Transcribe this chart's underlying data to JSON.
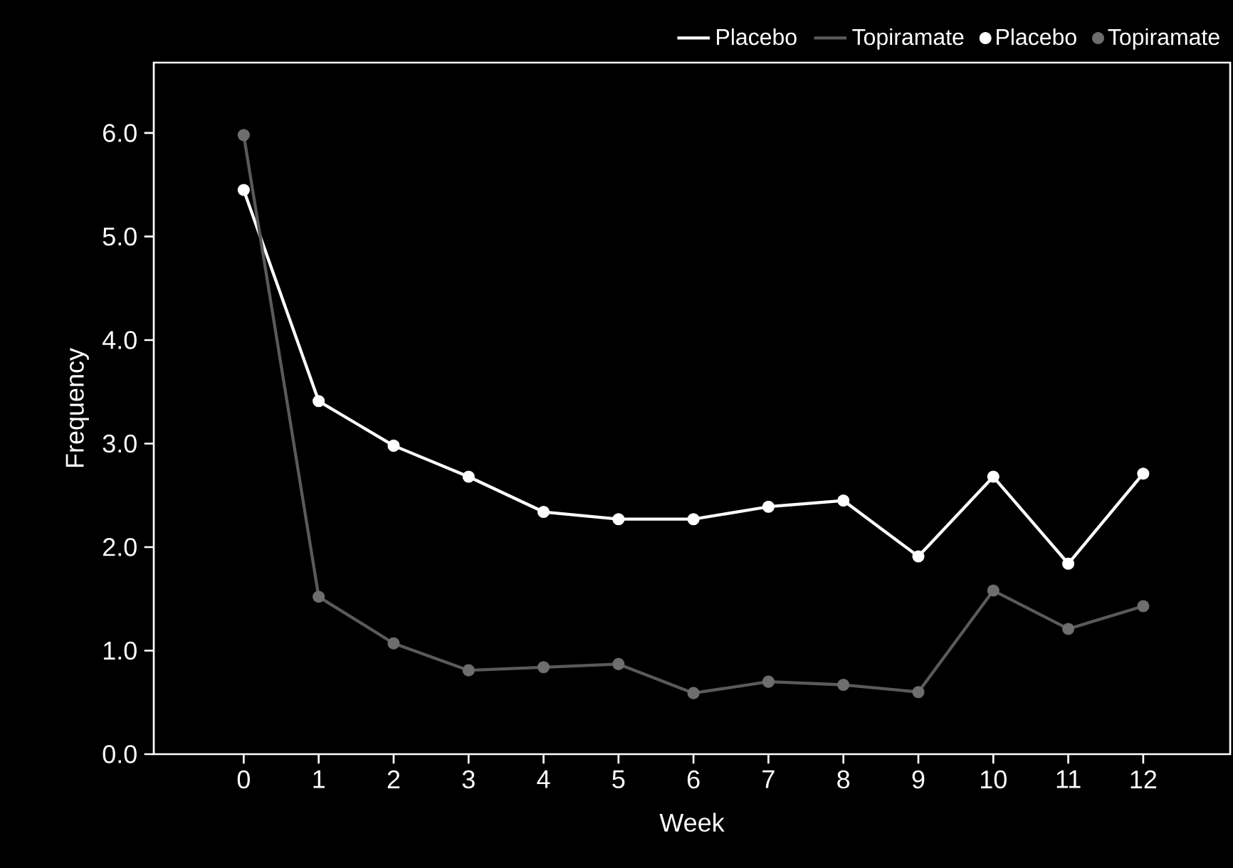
{
  "chart_data": {
    "type": "line",
    "xlabel": "Week",
    "ylabel": "Frequency",
    "x": [
      0,
      1,
      2,
      3,
      4,
      5,
      6,
      7,
      8,
      9,
      10,
      11,
      12
    ],
    "series": [
      {
        "name": "Placebo",
        "marker": "none",
        "color": "#ffffff",
        "values": [
          5.45,
          3.41,
          2.98,
          2.68,
          2.34,
          2.27,
          2.27,
          2.39,
          2.45,
          1.91,
          2.68,
          1.84,
          2.71
        ]
      },
      {
        "name": "Topiramate",
        "marker": "none",
        "color": "#5a5a5a",
        "values": [
          5.98,
          1.52,
          1.07,
          0.81,
          0.84,
          0.87,
          0.59,
          0.7,
          0.67,
          0.6,
          1.58,
          1.21,
          1.43
        ]
      },
      {
        "name": "Placebo",
        "type": "scatter",
        "marker": "circle",
        "color": "#ffffff",
        "values": [
          5.45,
          3.41,
          2.98,
          2.68,
          2.34,
          2.27,
          2.27,
          2.39,
          2.45,
          1.91,
          2.68,
          1.84,
          2.71
        ]
      },
      {
        "name": "Topiramate",
        "type": "scatter",
        "marker": "circle",
        "color": "#6e6e6e",
        "values": [
          5.98,
          1.52,
          1.07,
          0.81,
          0.84,
          0.87,
          0.59,
          0.7,
          0.67,
          0.6,
          1.58,
          1.21,
          1.43
        ]
      }
    ],
    "xlim": [
      -1.2,
      13.16
    ],
    "xticks": [
      0,
      1,
      2,
      3,
      4,
      5,
      6,
      7,
      8,
      9,
      10,
      11,
      12
    ],
    "ylim": [
      0,
      6.68
    ],
    "yticks": [
      {
        "value": 0,
        "label": "0.0"
      },
      {
        "value": 1,
        "label": "1.0"
      },
      {
        "value": 2,
        "label": "2.0"
      },
      {
        "value": 3,
        "label": "3.0"
      },
      {
        "value": 4,
        "label": "4.0"
      },
      {
        "value": 5,
        "label": "5.0"
      },
      {
        "value": 6,
        "label": "6.0"
      }
    ],
    "legend": "top right",
    "grid": false
  }
}
